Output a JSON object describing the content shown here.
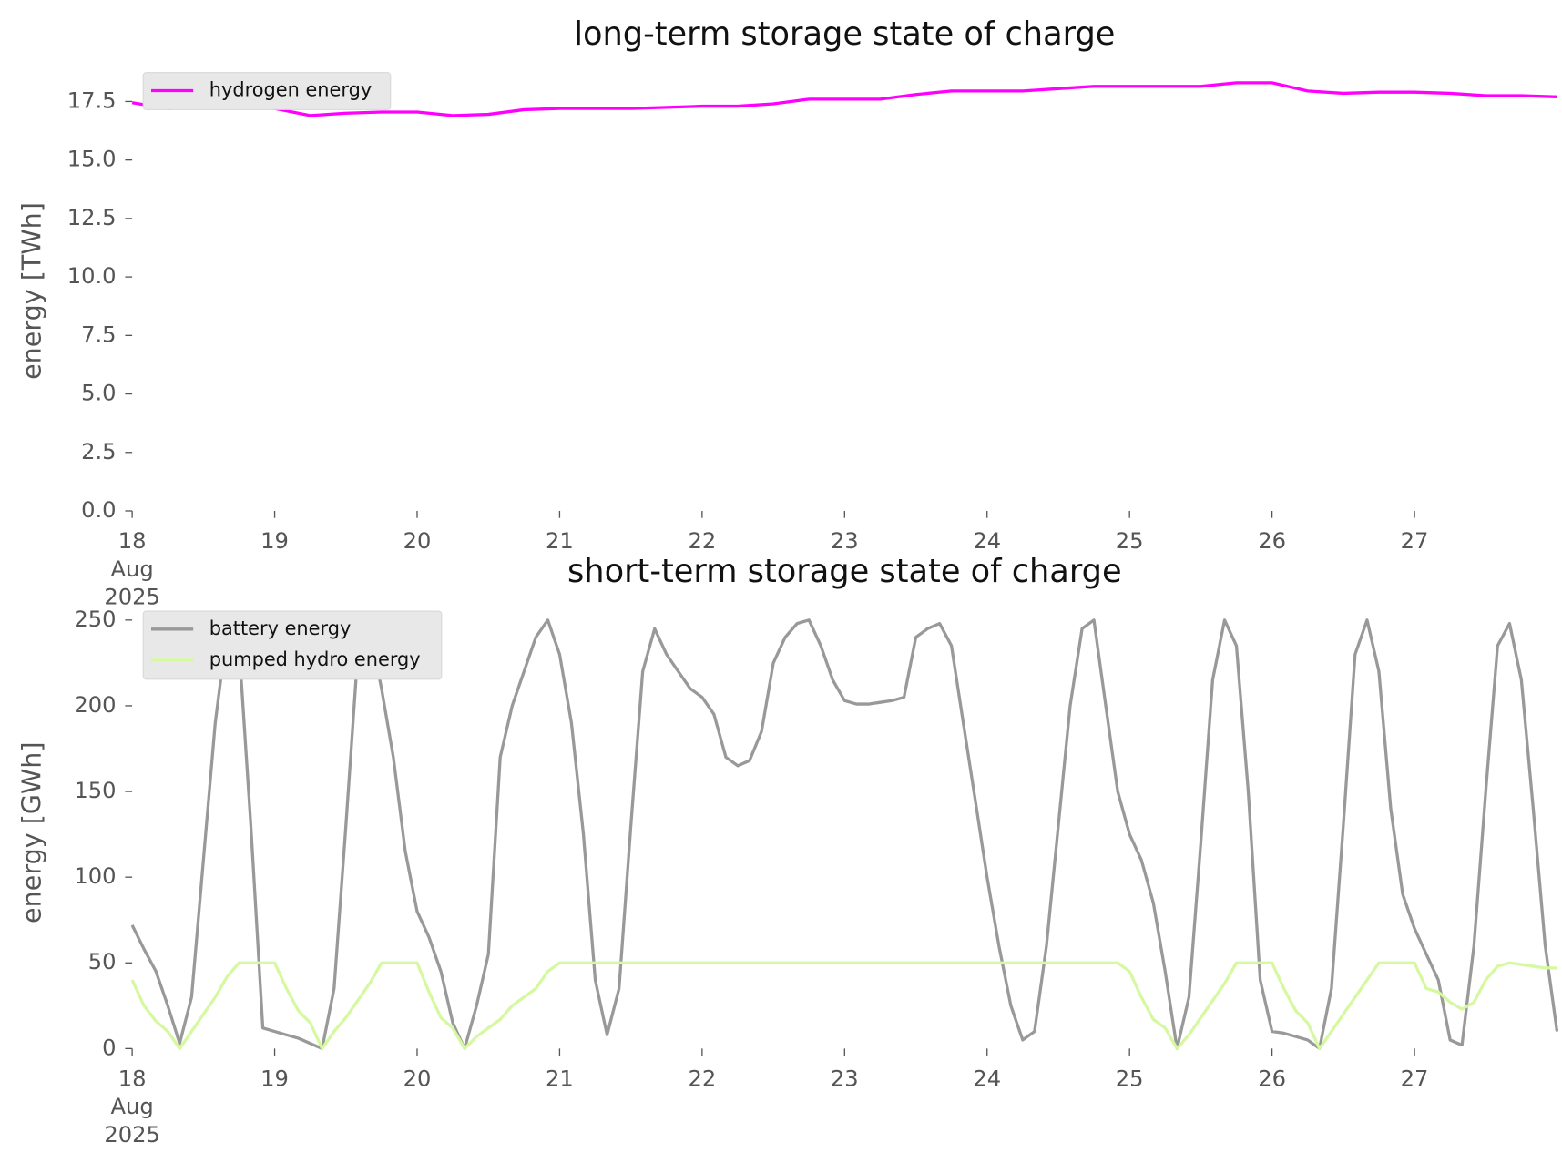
{
  "chart_data": [
    {
      "type": "line",
      "title": "long-term storage state of charge",
      "ylabel": "energy [TWh]",
      "x": [
        18,
        18.25,
        18.5,
        18.75,
        19,
        19.25,
        19.5,
        19.75,
        20,
        20.25,
        20.5,
        20.75,
        21,
        21.25,
        21.5,
        21.75,
        22,
        22.25,
        22.5,
        22.75,
        23,
        23.25,
        23.5,
        23.75,
        24,
        24.25,
        24.5,
        24.75,
        25,
        25.25,
        25.5,
        25.75,
        26,
        26.25,
        26.5,
        26.75,
        27,
        27.25,
        27.5,
        27.75,
        28
      ],
      "series": [
        {
          "name": "hydrogen energy",
          "color": "#ff00ff",
          "values": [
            17.45,
            17.2,
            17.25,
            17.25,
            17.2,
            16.9,
            17.0,
            17.05,
            17.05,
            16.9,
            16.95,
            17.15,
            17.2,
            17.2,
            17.2,
            17.25,
            17.3,
            17.3,
            17.4,
            17.6,
            17.6,
            17.6,
            17.8,
            17.95,
            17.95,
            17.95,
            18.05,
            18.15,
            18.15,
            18.15,
            18.15,
            18.3,
            18.3,
            17.95,
            17.85,
            17.9,
            17.9,
            17.85,
            17.75,
            17.75,
            17.7
          ]
        }
      ],
      "xlim": [
        18,
        28
      ],
      "ylim": [
        0,
        18.8
      ],
      "xticks": [
        {
          "value": 18,
          "label": "18\nAug\n2025"
        },
        19,
        20,
        21,
        22,
        23,
        24,
        25,
        26,
        27
      ],
      "yticks": [
        {
          "value": 0,
          "label": "0.0"
        },
        2.5,
        {
          "value": 5,
          "label": "5.0"
        },
        7.5,
        {
          "value": 10,
          "label": "10.0"
        },
        12.5,
        {
          "value": 15,
          "label": "15.0"
        },
        17.5
      ],
      "legend": "upper left",
      "grid": false
    },
    {
      "type": "line",
      "title": "short-term storage state of charge",
      "ylabel": "energy [GWh]",
      "x": [
        18,
        18.083,
        18.167,
        18.25,
        18.333,
        18.417,
        18.5,
        18.583,
        18.667,
        18.75,
        18.833,
        18.917,
        19,
        19.083,
        19.167,
        19.25,
        19.333,
        19.417,
        19.5,
        19.583,
        19.667,
        19.75,
        19.833,
        19.917,
        20,
        20.083,
        20.167,
        20.25,
        20.333,
        20.417,
        20.5,
        20.583,
        20.667,
        20.75,
        20.833,
        20.917,
        21,
        21.083,
        21.167,
        21.25,
        21.333,
        21.417,
        21.5,
        21.583,
        21.667,
        21.75,
        21.833,
        21.917,
        22,
        22.083,
        22.167,
        22.25,
        22.333,
        22.417,
        22.5,
        22.583,
        22.667,
        22.75,
        22.833,
        22.917,
        23,
        23.083,
        23.167,
        23.25,
        23.333,
        23.417,
        23.5,
        23.583,
        23.667,
        23.75,
        23.833,
        23.917,
        24,
        24.083,
        24.167,
        24.25,
        24.333,
        24.417,
        24.5,
        24.583,
        24.667,
        24.75,
        24.833,
        24.917,
        25,
        25.083,
        25.167,
        25.25,
        25.333,
        25.417,
        25.5,
        25.583,
        25.667,
        25.75,
        25.833,
        25.917,
        26,
        26.083,
        26.167,
        26.25,
        26.333,
        26.417,
        26.5,
        26.583,
        26.667,
        26.75,
        26.833,
        26.917,
        27,
        27.083,
        27.167,
        27.25,
        27.333,
        27.417,
        27.5,
        27.583,
        27.667,
        27.75,
        27.833,
        27.917,
        28
      ],
      "series": [
        {
          "name": "battery energy",
          "color": "#999999",
          "values": [
            72,
            58,
            45,
            25,
            3,
            30,
            110,
            190,
            245,
            235,
            130,
            12,
            10,
            8,
            6,
            3,
            0,
            35,
            130,
            230,
            245,
            210,
            170,
            115,
            80,
            65,
            45,
            15,
            0,
            25,
            55,
            170,
            200,
            220,
            240,
            250,
            230,
            190,
            125,
            40,
            8,
            35,
            130,
            220,
            245,
            230,
            220,
            210,
            205,
            195,
            170,
            165,
            168,
            185,
            225,
            240,
            248,
            250,
            235,
            215,
            203,
            201,
            201,
            202,
            203,
            205,
            240,
            245,
            248,
            235,
            190,
            145,
            100,
            60,
            25,
            5,
            10,
            60,
            130,
            200,
            245,
            250,
            200,
            150,
            125,
            110,
            85,
            45,
            0,
            30,
            120,
            215,
            250,
            235,
            150,
            40,
            10,
            9,
            7,
            5,
            0,
            35,
            130,
            230,
            250,
            220,
            140,
            90,
            70,
            55,
            40,
            5,
            2,
            60,
            150,
            235,
            248,
            215,
            140,
            60,
            10
          ]
        },
        {
          "name": "pumped hydro energy",
          "color": "#d6f8a0",
          "values": [
            40,
            25,
            16,
            10,
            0,
            10,
            20,
            30,
            42,
            50,
            50,
            50,
            50,
            35,
            22,
            15,
            0,
            10,
            18,
            28,
            38,
            50,
            50,
            50,
            50,
            33,
            18,
            12,
            0,
            7,
            12,
            17,
            25,
            30,
            35,
            45,
            50,
            50,
            50,
            50,
            50,
            50,
            50,
            50,
            50,
            50,
            50,
            50,
            50,
            50,
            50,
            50,
            50,
            50,
            50,
            50,
            50,
            50,
            50,
            50,
            50,
            50,
            50,
            50,
            50,
            50,
            50,
            50,
            50,
            50,
            50,
            50,
            50,
            50,
            50,
            50,
            50,
            50,
            50,
            50,
            50,
            50,
            50,
            50,
            45,
            30,
            17,
            12,
            0,
            8,
            18,
            28,
            38,
            50,
            50,
            50,
            50,
            35,
            22,
            15,
            0,
            10,
            20,
            30,
            40,
            50,
            50,
            50,
            50,
            35,
            33,
            27,
            23,
            27,
            40,
            48,
            50,
            49,
            48,
            47,
            47
          ]
        }
      ],
      "xlim": [
        18,
        28
      ],
      "ylim": [
        0,
        252
      ],
      "xticks": [
        {
          "value": 18,
          "label": "18\nAug\n2025"
        },
        19,
        20,
        21,
        22,
        23,
        24,
        25,
        26,
        27
      ],
      "yticks": [
        0,
        50,
        100,
        150,
        200,
        250
      ],
      "legend": "upper left",
      "grid": false
    }
  ]
}
